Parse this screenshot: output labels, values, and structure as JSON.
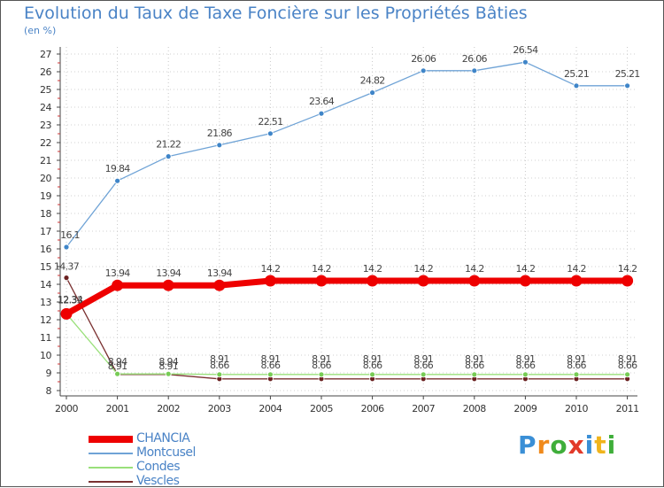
{
  "chart_data": {
    "type": "line",
    "title": "Evolution du Taux de Taxe Foncière sur les Propriétés Bâties",
    "ylabel": "(en %)",
    "xlabel": "",
    "categories": [
      "2000",
      "2001",
      "2002",
      "2003",
      "2004",
      "2005",
      "2006",
      "2007",
      "2008",
      "2009",
      "2010",
      "2011"
    ],
    "ylim": [
      8,
      27
    ],
    "yticks": [
      "8",
      "9",
      "10",
      "11",
      "12",
      "13",
      "14",
      "15",
      "16",
      "17",
      "18",
      "19",
      "20",
      "21",
      "22",
      "23",
      "24",
      "25",
      "26",
      "27"
    ],
    "series": [
      {
        "name": "Montcusel",
        "color": "#6fa3d6",
        "marker": "#3f85c8",
        "values": [
          16.1,
          19.84,
          21.22,
          21.86,
          22.51,
          23.64,
          24.82,
          26.06,
          26.06,
          26.54,
          25.21,
          25.21
        ],
        "labels": [
          "16.1",
          "19.84",
          "21.22",
          "21.86",
          "22.51",
          "23.64",
          "24.82",
          "26.06",
          "26.06",
          "26.54",
          "25.21",
          "25.21"
        ]
      },
      {
        "name": "CHANCIA",
        "color": "#ee0000",
        "marker": "#ee0000",
        "values": [
          12.33,
          13.94,
          13.94,
          13.94,
          14.2,
          14.2,
          14.2,
          14.2,
          14.2,
          14.2,
          14.2,
          14.2
        ],
        "labels": [
          "12.33",
          "13.94",
          "13.94",
          "13.94",
          "14.2",
          "14.2",
          "14.2",
          "14.2",
          "14.2",
          "14.2",
          "14.2",
          "14.2"
        ]
      },
      {
        "name": "Condes",
        "color": "#99e07a",
        "marker": "#77cc55",
        "values": [
          12.34,
          8.94,
          8.94,
          8.91,
          8.91,
          8.91,
          8.91,
          8.91,
          8.91,
          8.91,
          8.91,
          8.91
        ],
        "labels": [
          "12.34",
          "8.94",
          "8.94",
          "8.91",
          "8.91",
          "8.91",
          "8.91",
          "8.91",
          "8.91",
          "8.91",
          "8.91",
          "8.91"
        ]
      },
      {
        "name": "Vescles",
        "color": "#7a3030",
        "marker": "#6a2020",
        "values": [
          14.37,
          8.91,
          8.91,
          8.66,
          8.66,
          8.66,
          8.66,
          8.66,
          8.66,
          8.66,
          8.66,
          8.66
        ],
        "labels": [
          "14.37",
          "8.91",
          "8.91",
          "8.66",
          "8.66",
          "8.66",
          "8.66",
          "8.66",
          "8.66",
          "8.66",
          "8.66",
          "8.66"
        ]
      }
    ],
    "legend": [
      "CHANCIA",
      "Montcusel",
      "Condes",
      "Vescles"
    ],
    "logo": "Proxiti"
  }
}
